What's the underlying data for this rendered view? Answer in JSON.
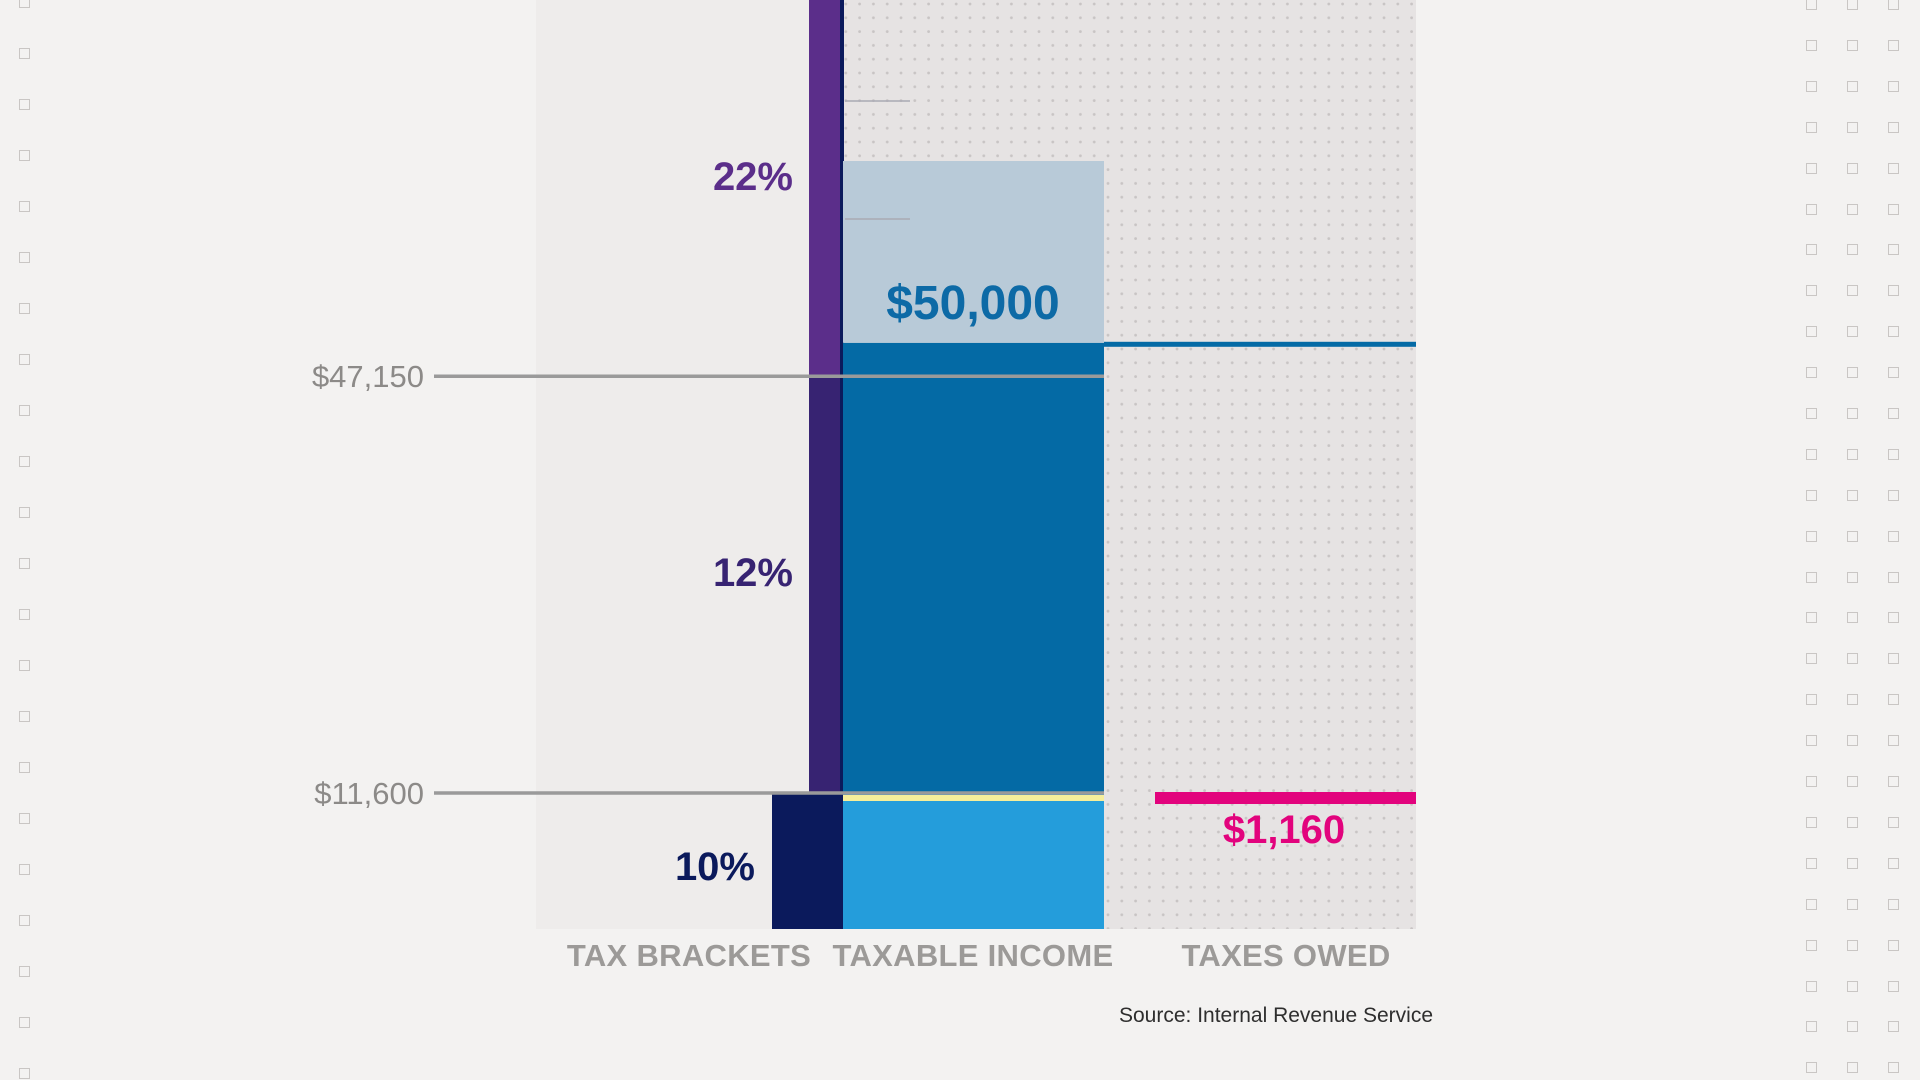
{
  "chart_data": {
    "type": "bar",
    "categories": [
      "TAX BRACKETS",
      "TAXABLE INCOME",
      "TAXES OWED"
    ],
    "brackets": [
      {
        "rate_label": "10%",
        "floor": 0,
        "ceiling": 11600,
        "color": "#0b1a5c"
      },
      {
        "rate_label": "12%",
        "floor": 11600,
        "ceiling": 47150,
        "color": "#372372"
      },
      {
        "rate_label": "22%",
        "floor": 47150,
        "ceiling": null,
        "color": "#5b2e8a"
      }
    ],
    "thresholds": [
      {
        "value": 11600,
        "label": "$11,600"
      },
      {
        "value": 47150,
        "label": "$47,150"
      }
    ],
    "taxable_income": {
      "value": 50000,
      "label": "$50,000"
    },
    "taxes_owed": {
      "value": 1160,
      "label": "$1,160"
    },
    "ylim": [
      0,
      62000
    ],
    "source": "Source: Internal Revenue Service"
  },
  "colors": {
    "background": "#f3f2f1",
    "panel": "#eeeceb",
    "dotted_panel": "#e6e3e3",
    "income_10": "#249ddb",
    "income_12_22": "#046aa5",
    "income_projection": "#b8cad8",
    "highlight": "#f6ee9a",
    "taxes_owed": "#e2037d",
    "threshold_line": "#9a9a9a",
    "threshold_text": "#8c8a88",
    "income_text": "#0d6aa6",
    "label_10": "#0b1a5c",
    "label_12": "#372372",
    "label_22": "#5b2e8a",
    "axis_title": "#9c9a98"
  },
  "icons": [
    "square-pattern-left",
    "square-pattern-right"
  ]
}
